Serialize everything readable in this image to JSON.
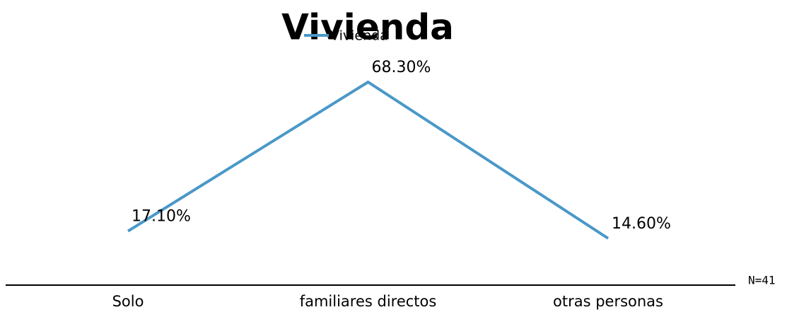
{
  "chart_data": {
    "type": "line",
    "title": "Vivienda",
    "categories": [
      "Solo",
      "familiares directos",
      "otras personas"
    ],
    "series": [
      {
        "name": "Vivienda",
        "color": "#4a98c8",
        "values": [
          17.1,
          68.3,
          14.6
        ],
        "value_labels": [
          "17.10%",
          "68.30%",
          "14.60%"
        ]
      }
    ],
    "ylim": [
      0,
      70
    ],
    "annotation": "N=41"
  }
}
